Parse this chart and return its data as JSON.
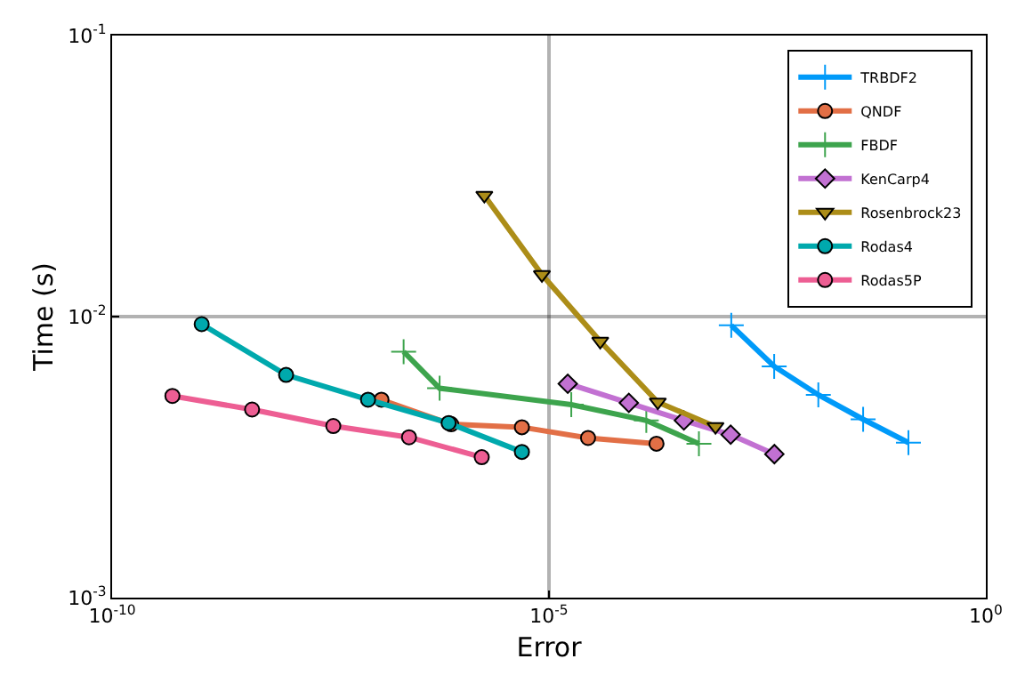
{
  "chart_data": {
    "type": "line",
    "xlabel": "Error",
    "ylabel": "Time (s)",
    "log": "xy",
    "grid": true,
    "legend": "top right",
    "line_style": "solid",
    "xlim": [
      1e-10,
      1
    ],
    "ylim": [
      0.001,
      0.1
    ],
    "xticks": [
      {
        "value": 1e-10,
        "label": "10$^{-10}$"
      },
      {
        "value": 1e-05,
        "label": "10$^{-5}$"
      },
      {
        "value": 1,
        "label": "10$^{0}$"
      }
    ],
    "yticks": [
      {
        "value": 0.001,
        "label": "10$^{-3}$"
      },
      {
        "value": 0.01,
        "label": "10$^{-2}$"
      },
      {
        "value": 0.1,
        "label": "10$^{-1}$"
      }
    ],
    "series": [
      {
        "name": "TRBDF2",
        "color": "#009af9",
        "marker": "cross",
        "x": [
          0.00122,
          0.00378,
          0.0121,
          0.0394,
          0.13
        ],
        "values": [
          0.00931,
          0.00665,
          0.00527,
          0.00431,
          0.00356
        ]
      },
      {
        "name": "QNDF",
        "color": "#e26f46",
        "marker": "circle",
        "x": [
          1.21e-07,
          7.6e-07,
          4.9e-06,
          2.8e-05,
          0.00017
        ],
        "values": [
          0.00506,
          0.00414,
          0.00404,
          0.0037,
          0.00353
        ]
      },
      {
        "name": "FBDF",
        "color": "#3da44d",
        "marker": "cross",
        "x": [
          2.17e-07,
          5.6e-07,
          1.8e-05,
          0.00013,
          0.00052
        ],
        "values": [
          0.0075,
          0.00556,
          0.00486,
          0.00427,
          0.00353
        ]
      },
      {
        "name": "KenCarp4",
        "color": "#c271d2",
        "marker": "diamond",
        "x": [
          1.64e-05,
          8.2e-05,
          0.00035,
          0.0012,
          0.0038
        ],
        "values": [
          0.00577,
          0.00493,
          0.00427,
          0.0038,
          0.00324
        ]
      },
      {
        "name": "Rosenbrock23",
        "color": "#ac8d18",
        "marker": "triangle",
        "x": [
          1.82e-06,
          8.3e-06,
          3.86e-05,
          0.000176,
          0.000805
        ],
        "values": [
          0.027,
          0.0141,
          0.00817,
          0.00496,
          0.00406
        ]
      },
      {
        "name": "Rodas4",
        "color": "#00a9ad",
        "marker": "circle",
        "x": [
          1.06e-09,
          9.8e-09,
          8.5e-08,
          7.1e-07,
          4.9e-06
        ],
        "values": [
          0.0094,
          0.0062,
          0.00506,
          0.00418,
          0.0033
        ]
      },
      {
        "name": "Rodas5P",
        "color": "#ed5e93",
        "marker": "circle",
        "x": [
          4.9e-10,
          4e-09,
          3.4e-08,
          2.5e-07,
          1.7e-06
        ],
        "values": [
          0.00522,
          0.00467,
          0.00408,
          0.00372,
          0.00316
        ]
      }
    ]
  }
}
